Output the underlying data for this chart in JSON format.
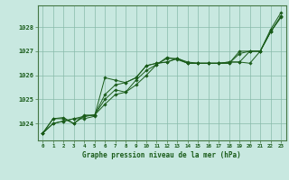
{
  "background_color": "#c8e8e0",
  "plot_bg_color": "#c8e8e0",
  "grid_color": "#88bbaa",
  "line_color": "#1a5c1a",
  "title": "Graphe pression niveau de la mer (hPa)",
  "xlabel_hours": [
    0,
    1,
    2,
    3,
    4,
    5,
    6,
    7,
    8,
    9,
    10,
    11,
    12,
    13,
    14,
    15,
    16,
    17,
    18,
    19,
    20,
    21,
    22,
    23
  ],
  "ylim": [
    1023.3,
    1028.9
  ],
  "yticks": [
    1024,
    1025,
    1026,
    1027,
    1028
  ],
  "series": [
    [
      1023.6,
      1024.0,
      1024.1,
      1024.2,
      1024.2,
      1024.3,
      1025.9,
      1025.8,
      1025.7,
      1025.9,
      1026.4,
      1026.5,
      1026.55,
      1026.7,
      1026.5,
      1026.5,
      1026.5,
      1026.5,
      1026.55,
      1026.55,
      1026.5,
      1027.0,
      1027.9,
      1028.6
    ],
    [
      1023.6,
      1024.0,
      1024.1,
      1024.2,
      1024.3,
      1024.35,
      1025.2,
      1025.6,
      1025.7,
      1025.9,
      1026.4,
      1026.5,
      1026.55,
      1026.7,
      1026.5,
      1026.5,
      1026.5,
      1026.5,
      1026.55,
      1026.55,
      1027.0,
      1027.0,
      1027.8,
      1028.45
    ],
    [
      1023.6,
      1024.2,
      1024.2,
      1024.0,
      1024.3,
      1024.35,
      1025.0,
      1025.4,
      1025.3,
      1025.8,
      1026.2,
      1026.45,
      1026.7,
      1026.7,
      1026.55,
      1026.5,
      1026.5,
      1026.5,
      1026.5,
      1027.0,
      1027.0,
      1027.0,
      1027.8,
      1028.45
    ],
    [
      1023.6,
      1024.2,
      1024.25,
      1024.0,
      1024.35,
      1024.35,
      1024.8,
      1025.2,
      1025.3,
      1025.6,
      1026.0,
      1026.45,
      1026.75,
      1026.65,
      1026.5,
      1026.5,
      1026.5,
      1026.5,
      1026.5,
      1026.9,
      1027.0,
      1027.0,
      1027.8,
      1028.4
    ]
  ]
}
